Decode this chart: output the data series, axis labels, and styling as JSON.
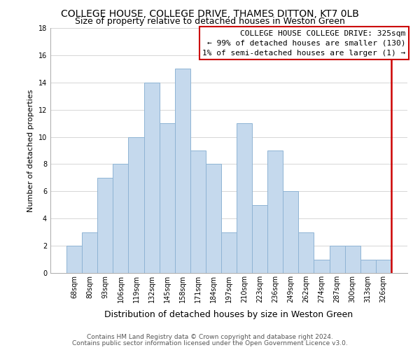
{
  "title": "COLLEGE HOUSE, COLLEGE DRIVE, THAMES DITTON, KT7 0LB",
  "subtitle": "Size of property relative to detached houses in Weston Green",
  "xlabel": "Distribution of detached houses by size in Weston Green",
  "ylabel": "Number of detached properties",
  "footer_line1": "Contains HM Land Registry data © Crown copyright and database right 2024.",
  "footer_line2": "Contains public sector information licensed under the Open Government Licence v3.0.",
  "bar_labels": [
    "68sqm",
    "80sqm",
    "93sqm",
    "106sqm",
    "119sqm",
    "132sqm",
    "145sqm",
    "158sqm",
    "171sqm",
    "184sqm",
    "197sqm",
    "210sqm",
    "223sqm",
    "236sqm",
    "249sqm",
    "262sqm",
    "274sqm",
    "287sqm",
    "300sqm",
    "313sqm",
    "326sqm"
  ],
  "bar_values": [
    2,
    3,
    7,
    8,
    10,
    14,
    11,
    15,
    9,
    8,
    3,
    11,
    5,
    9,
    6,
    3,
    1,
    2,
    2,
    1,
    1
  ],
  "bar_color": "#c5d9ed",
  "bar_edge_color": "#8fb4d4",
  "annotation_box_text_line1": "COLLEGE HOUSE COLLEGE DRIVE: 325sqm",
  "annotation_box_text_line2": "← 99% of detached houses are smaller (130)",
  "annotation_box_text_line3": "1% of semi-detached houses are larger (1) →",
  "annotation_box_edge_color": "#cc0000",
  "ylim": [
    0,
    18
  ],
  "yticks": [
    0,
    2,
    4,
    6,
    8,
    10,
    12,
    14,
    16,
    18
  ],
  "grid_color": "#d0d0d0",
  "background_color": "#ffffff",
  "title_fontsize": 10,
  "subtitle_fontsize": 9,
  "xlabel_fontsize": 9,
  "ylabel_fontsize": 8,
  "tick_fontsize": 7,
  "annotation_fontsize": 8,
  "footer_fontsize": 6.5
}
